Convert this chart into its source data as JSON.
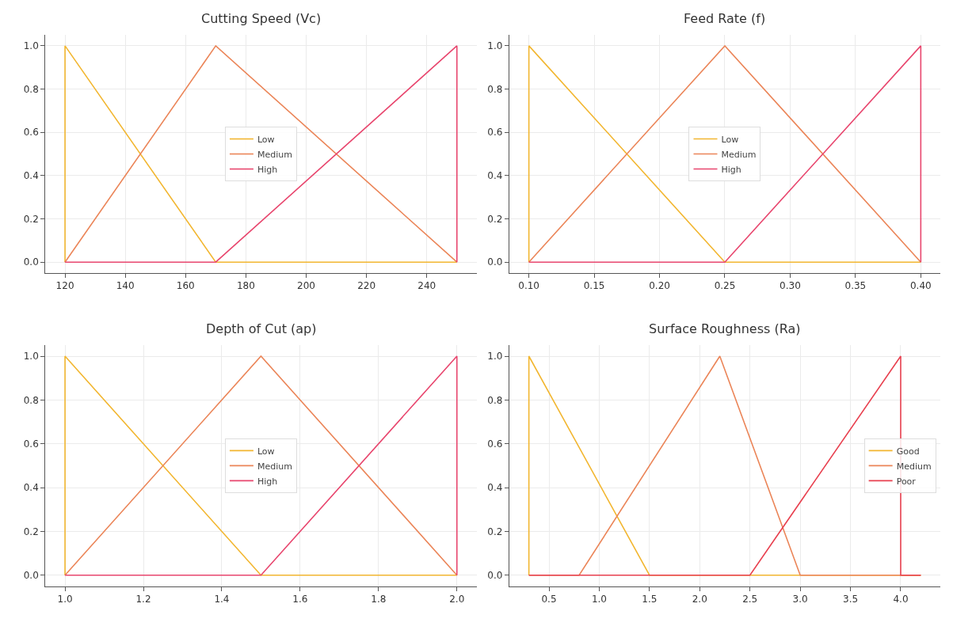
{
  "chart_data": [
    {
      "type": "line",
      "title": "Cutting Speed (Vc)",
      "xlim": [
        113.5,
        256.5
      ],
      "xticks": [
        120,
        140,
        160,
        180,
        200,
        220,
        240
      ],
      "ylim": [
        -0.05,
        1.05
      ],
      "yticks": [
        {
          "value": 0,
          "label": "0.0"
        },
        {
          "value": 0.2,
          "label": "0.2"
        },
        {
          "value": 0.4,
          "label": "0.4"
        },
        {
          "value": 0.6,
          "label": "0.6"
        },
        {
          "value": 0.8,
          "label": "0.8"
        },
        {
          "value": 1,
          "label": "1.0"
        }
      ],
      "grid": true,
      "legend": "center",
      "marker": "none",
      "series": [
        {
          "name": "Low",
          "color": "#f2b630",
          "x": [
            120,
            120,
            170,
            250
          ],
          "values": [
            0,
            1,
            0,
            0
          ]
        },
        {
          "name": "Medium",
          "color": "#eb8558",
          "x": [
            120,
            170,
            250
          ],
          "values": [
            0,
            1,
            0
          ]
        },
        {
          "name": "High",
          "color": "#e8466e",
          "x": [
            120,
            170,
            250,
            250
          ],
          "values": [
            0,
            0,
            1,
            0
          ]
        }
      ]
    },
    {
      "type": "line",
      "title": "Feed Rate (f)",
      "xlim": [
        0.085,
        0.415
      ],
      "xticks": [
        {
          "value": 0.1,
          "label": "0.10"
        },
        {
          "value": 0.15,
          "label": "0.15"
        },
        {
          "value": 0.2,
          "label": "0.20"
        },
        {
          "value": 0.25,
          "label": "0.25"
        },
        {
          "value": 0.3,
          "label": "0.30"
        },
        {
          "value": 0.35,
          "label": "0.35"
        },
        {
          "value": 0.4,
          "label": "0.40"
        }
      ],
      "ylim": [
        -0.05,
        1.05
      ],
      "yticks": [
        {
          "value": 0,
          "label": "0.0"
        },
        {
          "value": 0.2,
          "label": "0.2"
        },
        {
          "value": 0.4,
          "label": "0.4"
        },
        {
          "value": 0.6,
          "label": "0.6"
        },
        {
          "value": 0.8,
          "label": "0.8"
        },
        {
          "value": 1,
          "label": "1.0"
        }
      ],
      "grid": true,
      "legend": "center",
      "marker": "none",
      "series": [
        {
          "name": "Low",
          "color": "#f2b630",
          "x": [
            0.1,
            0.1,
            0.25,
            0.4
          ],
          "values": [
            0,
            1,
            0,
            0
          ]
        },
        {
          "name": "Medium",
          "color": "#eb8558",
          "x": [
            0.1,
            0.25,
            0.4
          ],
          "values": [
            0,
            1,
            0
          ]
        },
        {
          "name": "High",
          "color": "#e8466e",
          "x": [
            0.1,
            0.25,
            0.4,
            0.4
          ],
          "values": [
            0,
            0,
            1,
            0
          ]
        }
      ]
    },
    {
      "type": "line",
      "title": "Depth of Cut (ap)",
      "xlim": [
        0.95,
        2.05
      ],
      "xticks": [
        {
          "value": 1,
          "label": "1.0"
        },
        {
          "value": 1.2,
          "label": "1.2"
        },
        {
          "value": 1.4,
          "label": "1.4"
        },
        {
          "value": 1.6,
          "label": "1.6"
        },
        {
          "value": 1.8,
          "label": "1.8"
        },
        {
          "value": 2,
          "label": "2.0"
        }
      ],
      "ylim": [
        -0.05,
        1.05
      ],
      "yticks": [
        {
          "value": 0,
          "label": "0.0"
        },
        {
          "value": 0.2,
          "label": "0.2"
        },
        {
          "value": 0.4,
          "label": "0.4"
        },
        {
          "value": 0.6,
          "label": "0.6"
        },
        {
          "value": 0.8,
          "label": "0.8"
        },
        {
          "value": 1,
          "label": "1.0"
        }
      ],
      "grid": true,
      "legend": "center",
      "marker": "none",
      "series": [
        {
          "name": "Low",
          "color": "#f2b630",
          "x": [
            1,
            1,
            1.5,
            2
          ],
          "values": [
            0,
            1,
            0,
            0
          ]
        },
        {
          "name": "Medium",
          "color": "#eb8558",
          "x": [
            1,
            1.5,
            2
          ],
          "values": [
            0,
            1,
            0
          ]
        },
        {
          "name": "High",
          "color": "#e8466e",
          "x": [
            1,
            1.5,
            2,
            2
          ],
          "values": [
            0,
            0,
            1,
            0
          ]
        }
      ]
    },
    {
      "type": "line",
      "title": "Surface Roughness (Ra)",
      "xlim": [
        0.105,
        4.395
      ],
      "xticks": [
        {
          "value": 0.5,
          "label": "0.5"
        },
        {
          "value": 1,
          "label": "1.0"
        },
        {
          "value": 1.5,
          "label": "1.5"
        },
        {
          "value": 2,
          "label": "2.0"
        },
        {
          "value": 2.5,
          "label": "2.5"
        },
        {
          "value": 3,
          "label": "3.0"
        },
        {
          "value": 3.5,
          "label": "3.5"
        },
        {
          "value": 4,
          "label": "4.0"
        }
      ],
      "ylim": [
        -0.05,
        1.05
      ],
      "yticks": [
        {
          "value": 0,
          "label": "0.0"
        },
        {
          "value": 0.2,
          "label": "0.2"
        },
        {
          "value": 0.4,
          "label": "0.4"
        },
        {
          "value": 0.6,
          "label": "0.6"
        },
        {
          "value": 0.8,
          "label": "0.8"
        },
        {
          "value": 1,
          "label": "1.0"
        }
      ],
      "grid": true,
      "legend": "right",
      "marker": "none",
      "series": [
        {
          "name": "Good",
          "color": "#f2b630",
          "x": [
            0.3,
            0.3,
            1.5,
            4.2
          ],
          "values": [
            0,
            1,
            0,
            0
          ]
        },
        {
          "name": "Medium",
          "color": "#eb8558",
          "x": [
            0.3,
            0.8,
            2.2,
            3.0,
            4.2
          ],
          "values": [
            0,
            0,
            1,
            0,
            0
          ]
        },
        {
          "name": "Poor",
          "color": "#e8404f",
          "x": [
            0.3,
            2.5,
            4.0,
            4.0,
            4.2
          ],
          "values": [
            0,
            0,
            1,
            0,
            0
          ]
        }
      ]
    }
  ]
}
